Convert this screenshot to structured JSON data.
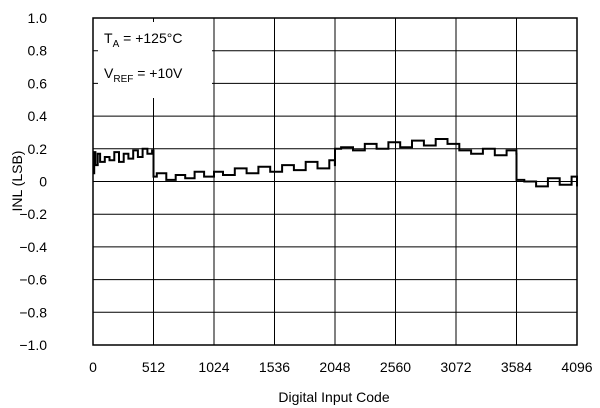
{
  "chart_data": {
    "type": "line",
    "title": "",
    "xlabel": "Digital Input Code",
    "ylabel": "INL (LSB)",
    "xlim": [
      0,
      4096
    ],
    "ylim": [
      -1.0,
      1.0
    ],
    "grid": true,
    "x_ticks": [
      0,
      512,
      1024,
      1536,
      2048,
      2560,
      3072,
      3584,
      4096
    ],
    "y_ticks": [
      "1.0",
      "0.8",
      "0.6",
      "0.4",
      "0.2",
      "0",
      "−0.2",
      "−0.4",
      "−0.6",
      "−0.8",
      "−1.0"
    ],
    "y_tick_values": [
      1.0,
      0.8,
      0.6,
      0.4,
      0.2,
      0,
      -0.2,
      -0.4,
      -0.6,
      -0.8,
      -1.0
    ],
    "annotations": {
      "ta_main": "T",
      "ta_sub": "A",
      "ta_rest": " = +125°C",
      "vref_main": "V",
      "vref_sub": "REF",
      "vref_rest": " = +10V"
    },
    "series": [
      {
        "color": "#000000",
        "x": [
          0,
          10,
          20,
          40,
          60,
          100,
          140,
          180,
          220,
          260,
          300,
          340,
          380,
          420,
          460,
          500,
          512,
          540,
          620,
          700,
          780,
          860,
          940,
          1024,
          1100,
          1200,
          1300,
          1400,
          1500,
          1600,
          1700,
          1800,
          1900,
          2000,
          2047,
          2048,
          2100,
          2200,
          2300,
          2400,
          2500,
          2600,
          2700,
          2800,
          2900,
          3000,
          3100,
          3200,
          3300,
          3400,
          3500,
          3583,
          3584,
          3650,
          3750,
          3850,
          3950,
          4050,
          4096
        ],
        "values": [
          0.05,
          0.18,
          0.1,
          0.17,
          0.12,
          0.15,
          0.13,
          0.18,
          0.12,
          0.17,
          0.14,
          0.19,
          0.15,
          0.2,
          0.17,
          0.19,
          0.03,
          0.05,
          0.01,
          0.04,
          0.02,
          0.06,
          0.03,
          0.06,
          0.04,
          0.08,
          0.05,
          0.09,
          0.06,
          0.1,
          0.07,
          0.12,
          0.08,
          0.13,
          0.1,
          0.2,
          0.21,
          0.19,
          0.23,
          0.2,
          0.24,
          0.21,
          0.25,
          0.22,
          0.26,
          0.23,
          0.19,
          0.17,
          0.2,
          0.16,
          0.19,
          0.17,
          0.01,
          0.0,
          -0.03,
          0.02,
          -0.02,
          0.03,
          -0.03
        ]
      }
    ]
  }
}
